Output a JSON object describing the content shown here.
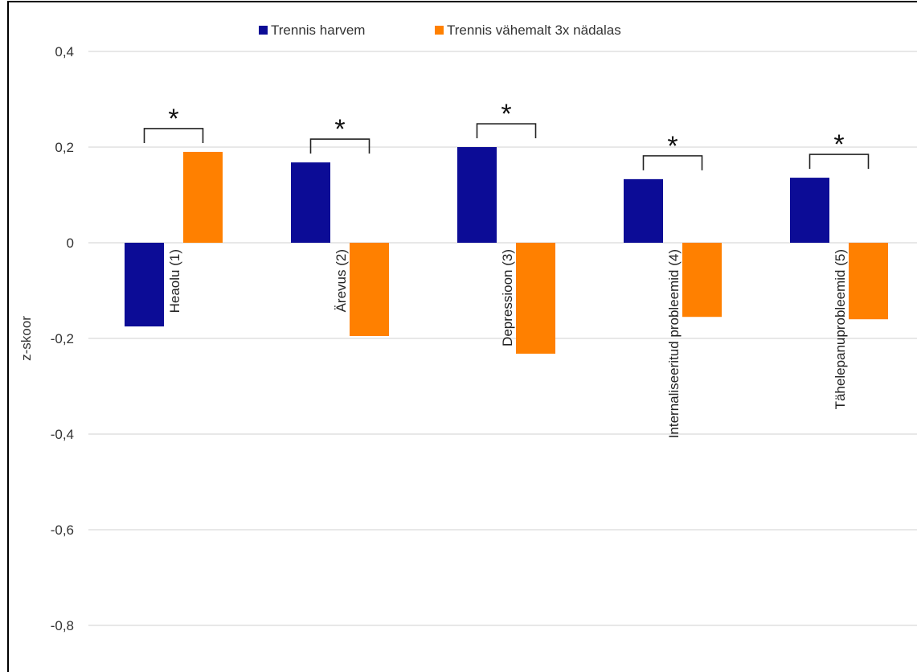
{
  "chart_data": {
    "type": "bar",
    "ylabel": "z-skoor",
    "ylim": [
      -0.8,
      0.4
    ],
    "yticks": [
      0.4,
      0.2,
      0,
      -0.2,
      -0.4,
      -0.6,
      -0.8
    ],
    "ytick_labels": [
      "0,4",
      "0,2",
      "0",
      "-0,2",
      "-0,4",
      "-0,6",
      "-0,8"
    ],
    "grid": true,
    "legend_position": "top-center",
    "categories": [
      "Heaolu (1)",
      "Ärevus (2)",
      "Depressioon (3)",
      "Internaliseeritud probleemid (4)",
      "Tähelepanuprobleemid (5)"
    ],
    "series": [
      {
        "name": "Trennis harvem",
        "color": "#0c0c96",
        "values": [
          -0.175,
          0.168,
          0.2,
          0.133,
          0.136
        ]
      },
      {
        "name": "Trennis vähemalt 3x nädalas",
        "color": "#ff8000",
        "values": [
          0.19,
          -0.195,
          -0.232,
          -0.155,
          -0.16
        ]
      }
    ],
    "significance_marker": "*",
    "significant": [
      true,
      true,
      true,
      true,
      true
    ]
  }
}
